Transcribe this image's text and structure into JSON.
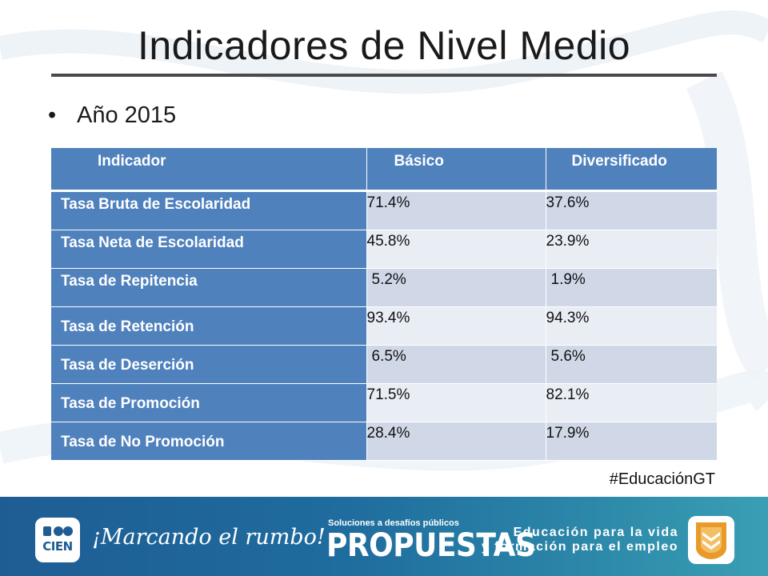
{
  "title": "Indicadores de Nivel Medio",
  "bullet": "Año 2015",
  "table": {
    "headers": [
      "Indicador",
      "Básico",
      "Diversificado"
    ],
    "rows": [
      [
        "Tasa Bruta de Escolaridad",
        "71.4%",
        "37.6%"
      ],
      [
        "Tasa Neta de Escolaridad",
        "45.8%",
        "23.9%"
      ],
      [
        "Tasa de Repitencia",
        "5.2%",
        "1.9%"
      ],
      [
        "Tasa de Retención",
        "93.4%",
        "94.3%"
      ],
      [
        "Tasa de Deserción",
        "6.5%",
        "5.6%"
      ],
      [
        "Tasa de Promoción",
        "71.5%",
        "82.1%"
      ],
      [
        "Tasa de No Promoción",
        "28.4%",
        "17.9%"
      ]
    ]
  },
  "hashtag": "#EducaciónGT",
  "footer": {
    "logo_text": "CIEN",
    "tagline": "¡Marcando el rumbo!",
    "propuestas_small": "Soluciones a desafíos públicos",
    "propuestas": "PROPUESTAS",
    "edu_line1": "Educación para la vida",
    "edu_line2": "y formación para el empleo"
  },
  "colors": {
    "table_header": "#4f81bd",
    "row_odd": "#d0d8e8",
    "row_even": "#e9edf4",
    "footer": "#1f6c9e",
    "badge_accent": "#e89a2c"
  }
}
